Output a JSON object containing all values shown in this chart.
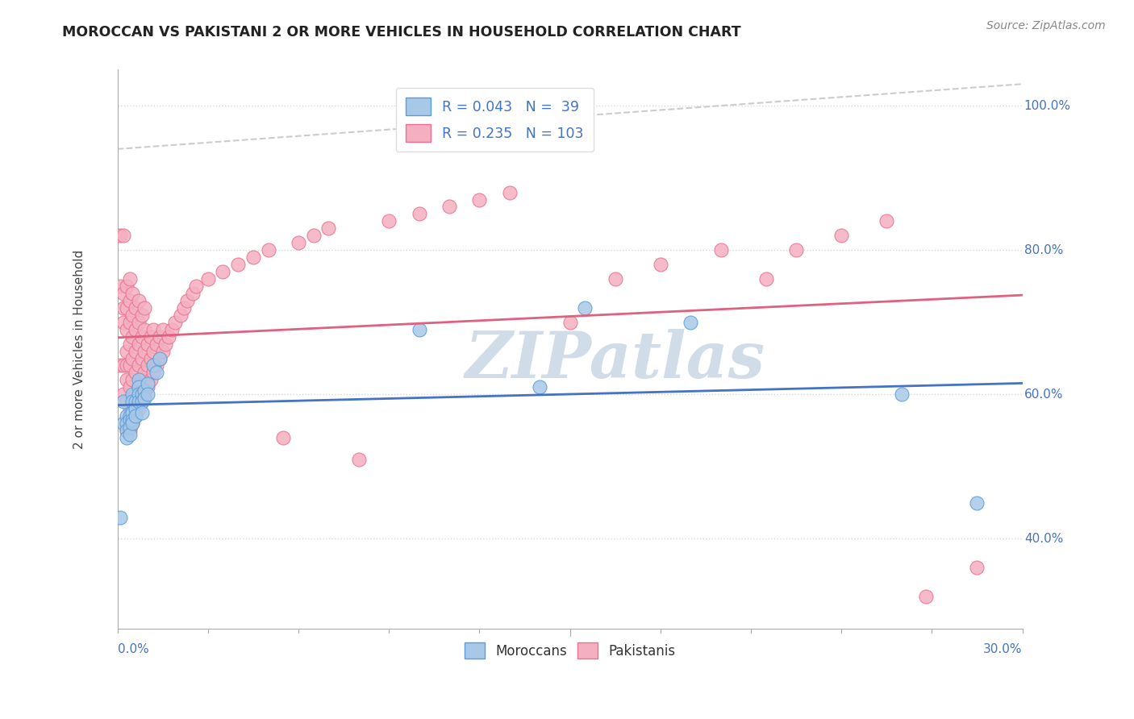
{
  "title": "MOROCCAN VS PAKISTANI 2 OR MORE VEHICLES IN HOUSEHOLD CORRELATION CHART",
  "source": "Source: ZipAtlas.com",
  "ylabel": "2 or more Vehicles in Household",
  "xmin": 0.0,
  "xmax": 0.3,
  "ymin": 0.275,
  "ymax": 1.05,
  "moroccan_color": "#a8c8e8",
  "pakistani_color": "#f4b0c0",
  "moroccan_edge_color": "#5b9bd5",
  "pakistani_edge_color": "#e87090",
  "moroccan_line_color": "#4472c4",
  "pakistani_line_color": "#e06080",
  "dashed_line_color": "#c8c8c8",
  "grid_color": "#d8d8d8",
  "watermark_text": "ZIPatlas",
  "watermark_color": "#d0dce8",
  "right_tick_color": "#4472c4",
  "legend_moroccan_r": "R = 0.043",
  "legend_moroccan_n": "N =  39",
  "legend_pakistani_r": "R = 0.235",
  "legend_pakistani_n": "N = 103",
  "moroccan_x": [
    0.001,
    0.002,
    0.002,
    0.003,
    0.003,
    0.003,
    0.003,
    0.004,
    0.004,
    0.004,
    0.004,
    0.005,
    0.005,
    0.005,
    0.005,
    0.005,
    0.006,
    0.006,
    0.006,
    0.007,
    0.007,
    0.007,
    0.007,
    0.008,
    0.008,
    0.008,
    0.009,
    0.009,
    0.01,
    0.01,
    0.012,
    0.013,
    0.014,
    0.1,
    0.14,
    0.155,
    0.19,
    0.26,
    0.285
  ],
  "moroccan_y": [
    0.43,
    0.56,
    0.59,
    0.57,
    0.56,
    0.55,
    0.54,
    0.57,
    0.565,
    0.555,
    0.545,
    0.6,
    0.59,
    0.575,
    0.565,
    0.56,
    0.59,
    0.58,
    0.57,
    0.62,
    0.61,
    0.6,
    0.59,
    0.6,
    0.59,
    0.575,
    0.605,
    0.595,
    0.615,
    0.6,
    0.64,
    0.63,
    0.65,
    0.69,
    0.61,
    0.72,
    0.7,
    0.6,
    0.45
  ],
  "pakistani_x": [
    0.001,
    0.001,
    0.001,
    0.002,
    0.002,
    0.002,
    0.002,
    0.002,
    0.002,
    0.003,
    0.003,
    0.003,
    0.003,
    0.003,
    0.003,
    0.003,
    0.003,
    0.004,
    0.004,
    0.004,
    0.004,
    0.004,
    0.004,
    0.004,
    0.004,
    0.005,
    0.005,
    0.005,
    0.005,
    0.005,
    0.005,
    0.005,
    0.006,
    0.006,
    0.006,
    0.006,
    0.006,
    0.006,
    0.007,
    0.007,
    0.007,
    0.007,
    0.007,
    0.007,
    0.008,
    0.008,
    0.008,
    0.008,
    0.008,
    0.009,
    0.009,
    0.009,
    0.009,
    0.009,
    0.01,
    0.01,
    0.01,
    0.011,
    0.011,
    0.011,
    0.012,
    0.012,
    0.012,
    0.013,
    0.013,
    0.014,
    0.014,
    0.015,
    0.015,
    0.016,
    0.017,
    0.018,
    0.019,
    0.021,
    0.022,
    0.023,
    0.025,
    0.026,
    0.03,
    0.035,
    0.04,
    0.045,
    0.05,
    0.055,
    0.06,
    0.065,
    0.07,
    0.08,
    0.09,
    0.1,
    0.11,
    0.12,
    0.13,
    0.15,
    0.165,
    0.18,
    0.2,
    0.215,
    0.225,
    0.24,
    0.255,
    0.268,
    0.285
  ],
  "pakistani_y": [
    0.64,
    0.75,
    0.82,
    0.6,
    0.64,
    0.7,
    0.72,
    0.74,
    0.82,
    0.55,
    0.59,
    0.62,
    0.64,
    0.66,
    0.69,
    0.72,
    0.75,
    0.55,
    0.58,
    0.61,
    0.64,
    0.67,
    0.7,
    0.73,
    0.76,
    0.56,
    0.59,
    0.62,
    0.65,
    0.68,
    0.71,
    0.74,
    0.57,
    0.6,
    0.63,
    0.66,
    0.69,
    0.72,
    0.58,
    0.61,
    0.64,
    0.67,
    0.7,
    0.73,
    0.59,
    0.62,
    0.65,
    0.68,
    0.71,
    0.6,
    0.63,
    0.66,
    0.69,
    0.72,
    0.61,
    0.64,
    0.67,
    0.62,
    0.65,
    0.68,
    0.63,
    0.66,
    0.69,
    0.64,
    0.67,
    0.65,
    0.68,
    0.66,
    0.69,
    0.67,
    0.68,
    0.69,
    0.7,
    0.71,
    0.72,
    0.73,
    0.74,
    0.75,
    0.76,
    0.77,
    0.78,
    0.79,
    0.8,
    0.54,
    0.81,
    0.82,
    0.83,
    0.51,
    0.84,
    0.85,
    0.86,
    0.87,
    0.88,
    0.7,
    0.76,
    0.78,
    0.8,
    0.76,
    0.8,
    0.82,
    0.84,
    0.32,
    0.36
  ],
  "moroccan_trendline": [
    0.577,
    0.597
  ],
  "pakistani_trendline": [
    0.625,
    0.82
  ],
  "dashed_trendline": [
    0.94,
    1.03
  ],
  "right_yticks": [
    1.0,
    0.8,
    0.6,
    0.4
  ],
  "right_ytick_labels": [
    "100.0%",
    "80.0%",
    "60.0%",
    "40.0%"
  ]
}
